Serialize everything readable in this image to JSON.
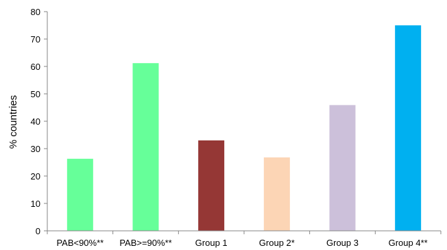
{
  "chart_data": {
    "type": "bar",
    "categories": [
      "PAB<90%**",
      "PAB>=90%**",
      "Group 1",
      "Group 2*",
      "Group 3",
      "Group 4**"
    ],
    "values": [
      26.3,
      61.2,
      33,
      26.8,
      45.9,
      75
    ],
    "colors": [
      "#66ff99",
      "#66ff99",
      "#953735",
      "#fcd5b5",
      "#ccc0da",
      "#00b0f0"
    ],
    "title": "",
    "xlabel": "",
    "ylabel": "% countries",
    "ylim": [
      0,
      80
    ],
    "yticks": [
      0,
      10,
      20,
      30,
      40,
      50,
      60,
      70,
      80
    ],
    "grid": false,
    "legend": false
  }
}
